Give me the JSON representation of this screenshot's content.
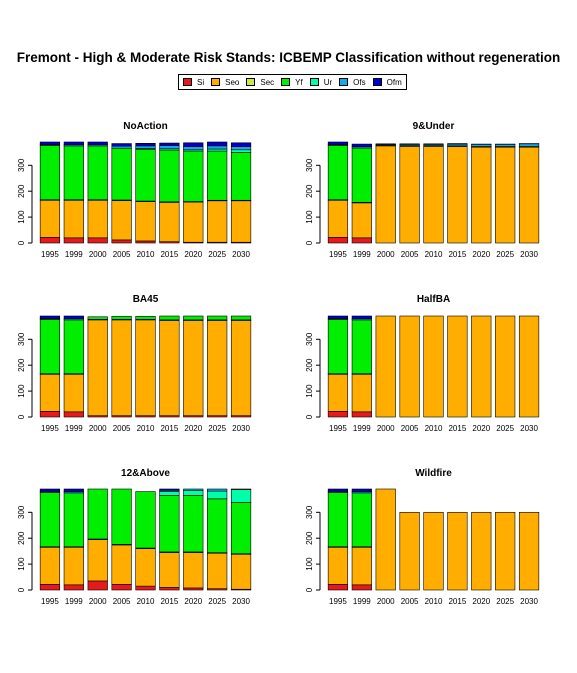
{
  "title": "Fremont  - High & Moderate Risk Stands: ICBEMP Classification without regeneration",
  "legend": [
    {
      "name": "Si",
      "color": "#e41a1c"
    },
    {
      "name": "Seo",
      "color": "#ffae00"
    },
    {
      "name": "Sec",
      "color": "#c8ec3c"
    },
    {
      "name": "Yf",
      "color": "#00ee00"
    },
    {
      "name": "Ur",
      "color": "#00ffaa"
    },
    {
      "name": "Ofs",
      "color": "#11aaee"
    },
    {
      "name": "Ofm",
      "color": "#0000cc"
    }
  ],
  "chart_data": [
    {
      "type": "bar",
      "stacked": true,
      "title": "NoAction",
      "categories": [
        "1995",
        "1999",
        "2000",
        "2005",
        "2010",
        "2015",
        "2020",
        "2025",
        "2030"
      ],
      "ylim": [
        0,
        390
      ],
      "yticks": [
        0,
        100,
        200,
        300
      ],
      "series": [
        {
          "name": "Si",
          "values": [
            22,
            20,
            20,
            12,
            8,
            5,
            3,
            3,
            3
          ]
        },
        {
          "name": "Seo",
          "values": [
            143,
            145,
            145,
            152,
            152,
            152,
            155,
            160,
            160
          ]
        },
        {
          "name": "Sec",
          "values": [
            2,
            2,
            2,
            2,
            2,
            2,
            2,
            2,
            2
          ]
        },
        {
          "name": "Yf",
          "values": [
            210,
            208,
            208,
            200,
            200,
            200,
            195,
            190,
            185
          ]
        },
        {
          "name": "Ur",
          "values": [
            0,
            0,
            0,
            0,
            3,
            5,
            5,
            8,
            10
          ]
        },
        {
          "name": "Ofs",
          "values": [
            3,
            5,
            5,
            8,
            10,
            12,
            12,
            12,
            12
          ]
        },
        {
          "name": "Ofm",
          "values": [
            10,
            10,
            10,
            10,
            10,
            10,
            15,
            15,
            15
          ]
        }
      ]
    },
    {
      "type": "bar",
      "stacked": true,
      "title": "9&Under",
      "categories": [
        "1995",
        "1999",
        "2000",
        "2005",
        "2010",
        "2015",
        "2020",
        "2025",
        "2030"
      ],
      "ylim": [
        0,
        390
      ],
      "yticks": [
        0,
        100,
        200,
        300
      ],
      "series": [
        {
          "name": "Si",
          "values": [
            22,
            20,
            0,
            0,
            0,
            0,
            0,
            0,
            0
          ]
        },
        {
          "name": "Seo",
          "values": [
            143,
            135,
            375,
            373,
            373,
            372,
            370,
            370,
            370
          ]
        },
        {
          "name": "Sec",
          "values": [
            2,
            2,
            3,
            3,
            3,
            3,
            3,
            3,
            3
          ]
        },
        {
          "name": "Yf",
          "values": [
            210,
            210,
            0,
            0,
            0,
            0,
            0,
            0,
            0
          ]
        },
        {
          "name": "Ur",
          "values": [
            0,
            0,
            0,
            0,
            0,
            0,
            0,
            0,
            0
          ]
        },
        {
          "name": "Ofs",
          "values": [
            3,
            5,
            3,
            5,
            5,
            7,
            8,
            8,
            10
          ]
        },
        {
          "name": "Ofm",
          "values": [
            10,
            10,
            2,
            2,
            2,
            2,
            1,
            1,
            1
          ]
        }
      ]
    },
    {
      "type": "bar",
      "stacked": true,
      "title": "BA45",
      "categories": [
        "1995",
        "1999",
        "2000",
        "2005",
        "2010",
        "2015",
        "2020",
        "2025",
        "2030"
      ],
      "ylim": [
        0,
        390
      ],
      "yticks": [
        0,
        100,
        200,
        300
      ],
      "series": [
        {
          "name": "Si",
          "values": [
            22,
            20,
            5,
            5,
            5,
            5,
            5,
            5,
            5
          ]
        },
        {
          "name": "Seo",
          "values": [
            143,
            145,
            370,
            370,
            370,
            368,
            368,
            368,
            368
          ]
        },
        {
          "name": "Sec",
          "values": [
            2,
            2,
            2,
            2,
            2,
            2,
            2,
            2,
            2
          ]
        },
        {
          "name": "Yf",
          "values": [
            210,
            208,
            10,
            12,
            12,
            15,
            15,
            15,
            15
          ]
        },
        {
          "name": "Ur",
          "values": [
            0,
            0,
            0,
            0,
            0,
            0,
            0,
            0,
            0
          ]
        },
        {
          "name": "Ofs",
          "values": [
            3,
            5,
            0,
            0,
            0,
            0,
            0,
            0,
            0
          ]
        },
        {
          "name": "Ofm",
          "values": [
            10,
            10,
            0,
            0,
            0,
            0,
            0,
            0,
            0
          ]
        }
      ]
    },
    {
      "type": "bar",
      "stacked": true,
      "title": "HalfBA",
      "categories": [
        "1995",
        "1999",
        "2000",
        "2005",
        "2010",
        "2015",
        "2020",
        "2025",
        "2030"
      ],
      "ylim": [
        0,
        390
      ],
      "yticks": [
        0,
        100,
        200,
        300
      ],
      "series": [
        {
          "name": "Si",
          "values": [
            22,
            20,
            0,
            0,
            0,
            0,
            0,
            0,
            0
          ]
        },
        {
          "name": "Seo",
          "values": [
            143,
            145,
            390,
            390,
            390,
            390,
            390,
            390,
            390
          ]
        },
        {
          "name": "Sec",
          "values": [
            2,
            2,
            0,
            0,
            0,
            0,
            0,
            0,
            0
          ]
        },
        {
          "name": "Yf",
          "values": [
            210,
            208,
            0,
            0,
            0,
            0,
            0,
            0,
            0
          ]
        },
        {
          "name": "Ur",
          "values": [
            0,
            0,
            0,
            0,
            0,
            0,
            0,
            0,
            0
          ]
        },
        {
          "name": "Ofs",
          "values": [
            3,
            5,
            0,
            0,
            0,
            0,
            0,
            0,
            0
          ]
        },
        {
          "name": "Ofm",
          "values": [
            10,
            10,
            0,
            0,
            0,
            0,
            0,
            0,
            0
          ]
        }
      ]
    },
    {
      "type": "bar",
      "stacked": true,
      "title": "12&Above",
      "categories": [
        "1995",
        "1999",
        "2000",
        "2005",
        "2010",
        "2015",
        "2020",
        "2025",
        "2030"
      ],
      "ylim": [
        0,
        390
      ],
      "yticks": [
        0,
        100,
        200,
        300
      ],
      "series": [
        {
          "name": "Si",
          "values": [
            22,
            20,
            35,
            22,
            15,
            10,
            8,
            5,
            3
          ]
        },
        {
          "name": "Seo",
          "values": [
            143,
            145,
            160,
            152,
            145,
            135,
            137,
            137,
            135
          ]
        },
        {
          "name": "Sec",
          "values": [
            2,
            2,
            2,
            2,
            2,
            2,
            2,
            2,
            2
          ]
        },
        {
          "name": "Yf",
          "values": [
            210,
            208,
            193,
            214,
            218,
            218,
            218,
            208,
            198
          ]
        },
        {
          "name": "Ur",
          "values": [
            0,
            0,
            0,
            0,
            0,
            15,
            20,
            30,
            50
          ]
        },
        {
          "name": "Ofs",
          "values": [
            3,
            5,
            0,
            0,
            0,
            5,
            5,
            8,
            2
          ]
        },
        {
          "name": "Ofm",
          "values": [
            10,
            10,
            0,
            0,
            0,
            5,
            0,
            0,
            0
          ]
        }
      ]
    },
    {
      "type": "bar",
      "stacked": true,
      "title": "Wildfire",
      "categories": [
        "1995",
        "1999",
        "2000",
        "2005",
        "2010",
        "2015",
        "2020",
        "2025",
        "2030"
      ],
      "ylim": [
        0,
        390
      ],
      "yticks": [
        0,
        100,
        200,
        300
      ],
      "series": [
        {
          "name": "Si",
          "values": [
            22,
            20,
            0,
            0,
            0,
            0,
            0,
            0,
            0
          ]
        },
        {
          "name": "Seo",
          "values": [
            143,
            145,
            390,
            300,
            300,
            300,
            300,
            300,
            300
          ]
        },
        {
          "name": "Sec",
          "values": [
            2,
            2,
            0,
            0,
            0,
            0,
            0,
            0,
            0
          ]
        },
        {
          "name": "Yf",
          "values": [
            210,
            208,
            0,
            0,
            0,
            0,
            0,
            0,
            0
          ]
        },
        {
          "name": "Ur",
          "values": [
            0,
            0,
            0,
            0,
            0,
            0,
            0,
            0,
            0
          ]
        },
        {
          "name": "Ofs",
          "values": [
            3,
            5,
            0,
            0,
            0,
            0,
            0,
            0,
            0
          ]
        },
        {
          "name": "Ofm",
          "values": [
            10,
            10,
            0,
            0,
            0,
            0,
            0,
            0,
            0
          ]
        }
      ]
    }
  ]
}
